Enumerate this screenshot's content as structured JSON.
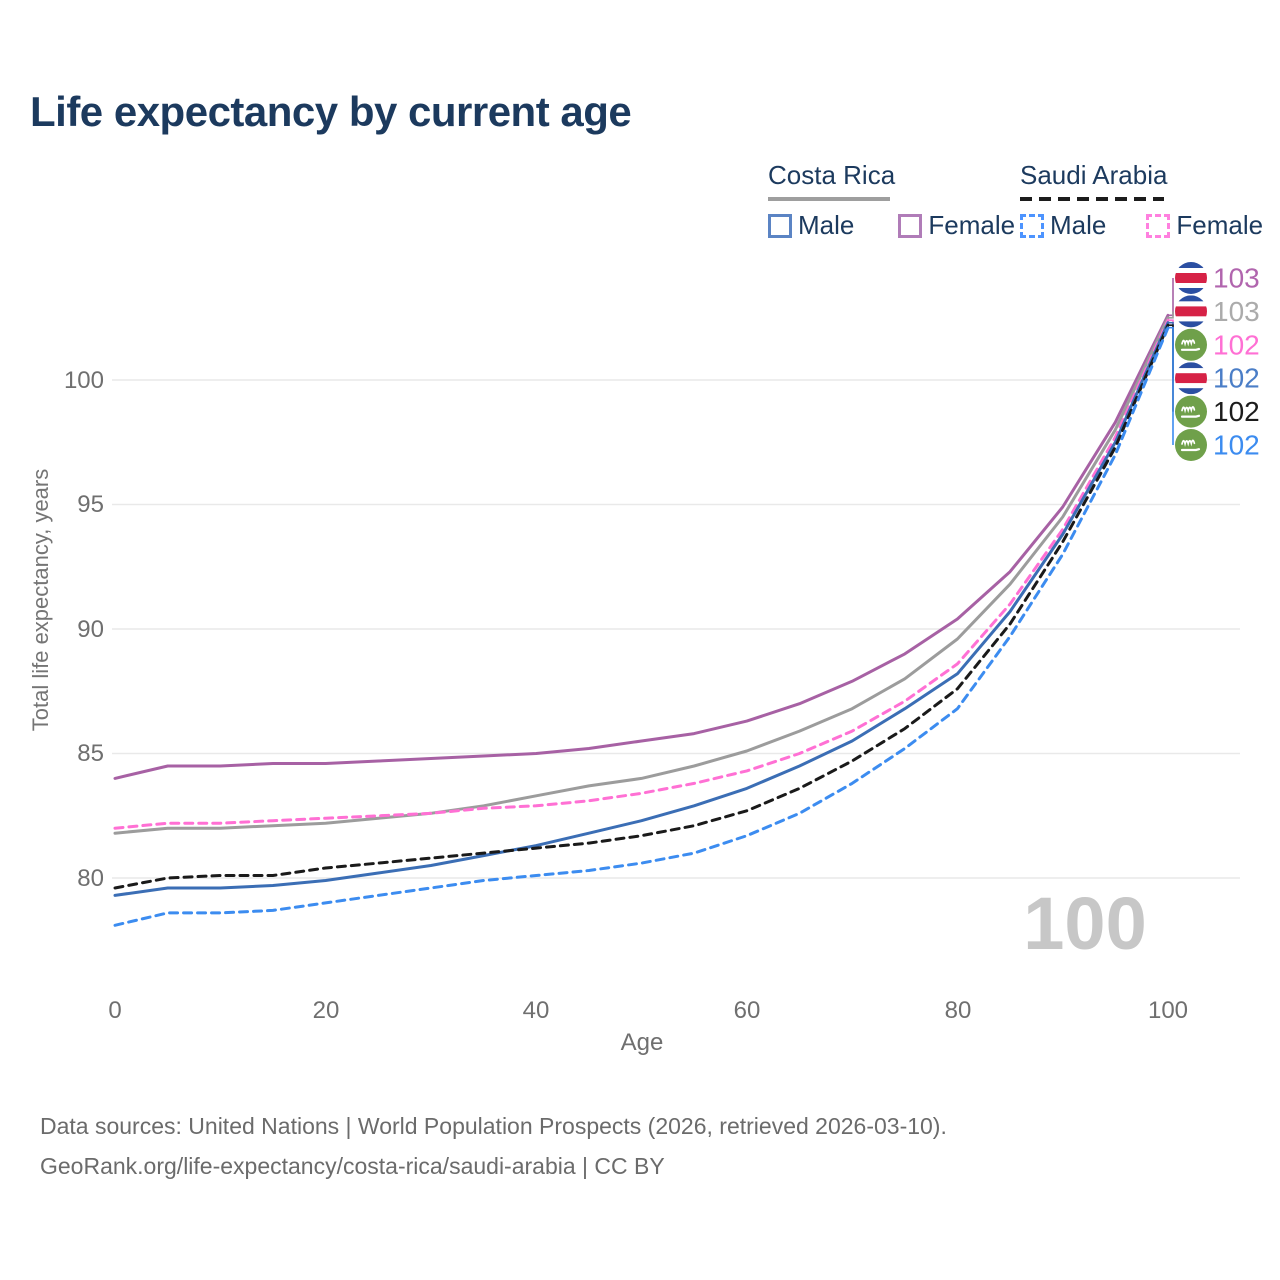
{
  "title": "Life expectancy by current age",
  "legend": {
    "costa_rica": {
      "label": "Costa Rica",
      "male": "Male",
      "female": "Female"
    },
    "saudi_arabia": {
      "label": "Saudi Arabia",
      "male": "Male",
      "female": "Female"
    }
  },
  "watermark": "100",
  "footer": {
    "line1": "Data sources: United Nations | World Population Prospects (2026, retrieved 2026-03-10).",
    "line2": "GeoRank.org/life-expectancy/costa-rica/saudi-arabia | CC BY"
  },
  "chart_data": {
    "type": "line",
    "title": "Life expectancy by current age",
    "xlabel": "Age",
    "ylabel": "Total life expectancy, years",
    "x_ticks": [
      0,
      20,
      40,
      60,
      80,
      100
    ],
    "y_ticks": [
      80,
      85,
      90,
      95,
      100
    ],
    "xlim": [
      0,
      100
    ],
    "ylim": [
      78,
      103.5
    ],
    "grid": "horizontal-only",
    "legend_position": "top-right",
    "ages": [
      0,
      5,
      10,
      15,
      20,
      25,
      30,
      35,
      40,
      45,
      50,
      55,
      60,
      65,
      70,
      75,
      80,
      85,
      90,
      95,
      100
    ],
    "series": [
      {
        "name": "costa-rica-female",
        "country": "Costa Rica",
        "sex": "Female",
        "style": "solid",
        "color": "#a761a4",
        "label_color": "#b165ae",
        "flag": "costa-rica",
        "end_value_label": "103",
        "values": [
          84.0,
          84.5,
          84.5,
          84.6,
          84.6,
          84.7,
          84.8,
          84.9,
          85.0,
          85.2,
          85.5,
          85.8,
          86.3,
          87.0,
          87.9,
          89.0,
          90.4,
          92.3,
          94.9,
          98.3,
          102.6
        ]
      },
      {
        "name": "costa-rica-all",
        "country": "Costa Rica",
        "sex": "Both sexes",
        "style": "solid",
        "color": "#9c9c9c",
        "label_color": "#ababab",
        "flag": "costa-rica",
        "end_value_label": "103",
        "values": [
          81.8,
          82.0,
          82.0,
          82.1,
          82.2,
          82.4,
          82.6,
          82.9,
          83.3,
          83.7,
          84.0,
          84.5,
          85.1,
          85.9,
          86.8,
          88.0,
          89.6,
          91.8,
          94.5,
          98.0,
          102.5
        ]
      },
      {
        "name": "saudi-arabia-female",
        "country": "Saudi Arabia",
        "sex": "Female",
        "style": "dashed",
        "color": "#ff70d4",
        "label_color": "#ff70d4",
        "flag": "saudi-arabia",
        "end_value_label": "102",
        "values": [
          82.0,
          82.2,
          82.2,
          82.3,
          82.4,
          82.5,
          82.6,
          82.8,
          82.9,
          83.1,
          83.4,
          83.8,
          84.3,
          85.0,
          85.9,
          87.1,
          88.6,
          91.0,
          94.0,
          97.7,
          102.4
        ]
      },
      {
        "name": "costa-rica-male",
        "country": "Costa Rica",
        "sex": "Male",
        "style": "solid",
        "color": "#3b6eb5",
        "label_color": "#4b7ec7",
        "flag": "costa-rica",
        "end_value_label": "102",
        "values": [
          79.3,
          79.6,
          79.6,
          79.7,
          79.9,
          80.2,
          80.5,
          80.9,
          81.3,
          81.8,
          82.3,
          82.9,
          83.6,
          84.5,
          85.5,
          86.8,
          88.2,
          90.7,
          93.8,
          97.5,
          102.3
        ]
      },
      {
        "name": "saudi-arabia-all",
        "country": "Saudi Arabia",
        "sex": "Both sexes",
        "style": "dashed",
        "color": "#1a1a1a",
        "label_color": "#1c1c1c",
        "flag": "saudi-arabia",
        "end_value_label": "102",
        "values": [
          79.6,
          80.0,
          80.1,
          80.1,
          80.4,
          80.6,
          80.8,
          81.0,
          81.2,
          81.4,
          81.7,
          82.1,
          82.7,
          83.6,
          84.7,
          86.0,
          87.6,
          90.2,
          93.5,
          97.3,
          102.2
        ]
      },
      {
        "name": "saudi-arabia-male",
        "country": "Saudi Arabia",
        "sex": "Male",
        "style": "dashed",
        "color": "#3c8cf0",
        "label_color": "#3c8cf0",
        "flag": "saudi-arabia",
        "end_value_label": "102",
        "values": [
          78.1,
          78.6,
          78.6,
          78.7,
          79.0,
          79.3,
          79.6,
          79.9,
          80.1,
          80.3,
          80.6,
          81.0,
          81.7,
          82.6,
          83.8,
          85.2,
          86.8,
          89.7,
          93.0,
          97.0,
          102.1
        ]
      }
    ],
    "colors": {
      "grid": "#e9e9e9",
      "axis_text": "#6f6f6f",
      "watermark": "#c7c7c7",
      "costa_rica_flag_blue": "#2b4fa2",
      "costa_rica_flag_red": "#d62246",
      "saudi_arabia_flag_green": "#6fa04a"
    }
  }
}
